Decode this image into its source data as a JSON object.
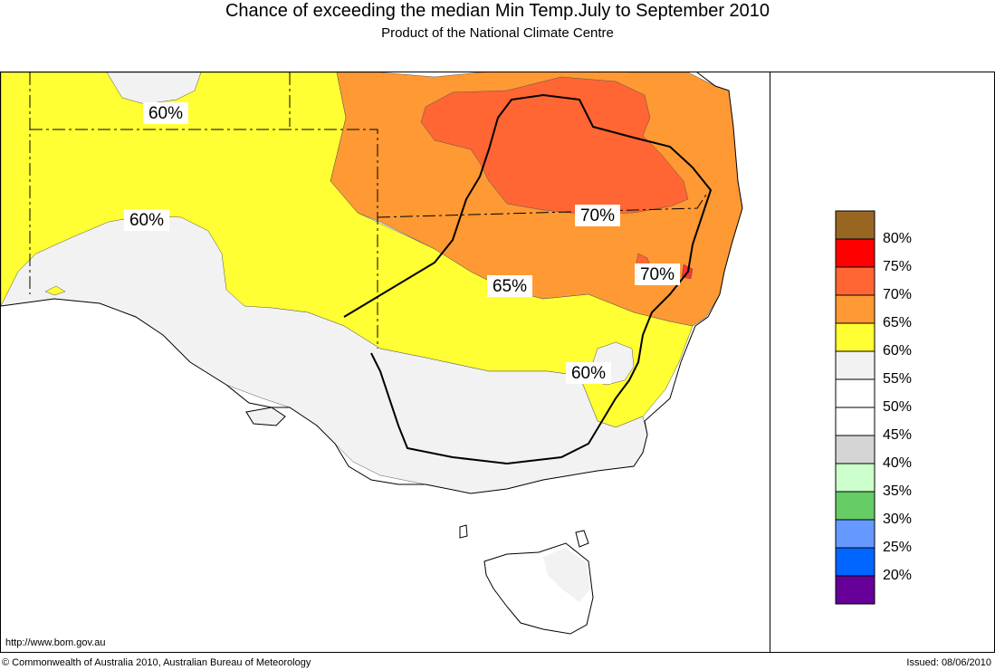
{
  "header": {
    "title": "Chance of exceeding the median Min Temp.July to September 2010",
    "subtitle": "Product of the National Climate Centre"
  },
  "map": {
    "contour_labels": [
      "60%",
      "60%",
      "70%",
      "70%",
      "65%",
      "60%"
    ],
    "zone_colors": {
      "p60": "#f2f2f2",
      "p65": "#ffff33",
      "p70": "#ff9933",
      "p75": "#ff6633",
      "p80": "#ff3333"
    }
  },
  "legend": {
    "items": [
      {
        "label": "",
        "color": "#996622"
      },
      {
        "label": "80%",
        "color": "#ff0000"
      },
      {
        "label": "75%",
        "color": "#ff6633"
      },
      {
        "label": "70%",
        "color": "#ff9933"
      },
      {
        "label": "65%",
        "color": "#ffff33"
      },
      {
        "label": "60%",
        "color": "#f2f2f2"
      },
      {
        "label": "55%",
        "color": "#ffffff"
      },
      {
        "label": "50%",
        "color": "#ffffff"
      },
      {
        "label": "45%",
        "color": "#d5d5d5"
      },
      {
        "label": "40%",
        "color": "#ccffcc"
      },
      {
        "label": "35%",
        "color": "#66cc66"
      },
      {
        "label": "30%",
        "color": "#6699ff"
      },
      {
        "label": "25%",
        "color": "#0066ff"
      },
      {
        "label": "20%",
        "color": "#660099"
      }
    ]
  },
  "footer": {
    "url": "http://www.bom.gov.au",
    "copyright": "© Commonwealth of Australia 2010, Australian Bureau of Meteorology",
    "issued": "Issued: 08/06/2010"
  }
}
